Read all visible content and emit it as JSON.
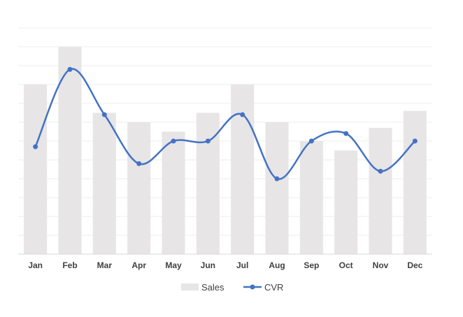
{
  "chart_data": {
    "type": "bar",
    "categories": [
      "Jan",
      "Feb",
      "Mar",
      "Apr",
      "May",
      "Jun",
      "Jul",
      "Aug",
      "Sep",
      "Oct",
      "Nov",
      "Dec"
    ],
    "series": [
      {
        "name": "Sales",
        "type": "bar",
        "values": [
          4.5,
          5.5,
          3.75,
          3.5,
          3.25,
          3.75,
          4.5,
          3.5,
          3.0,
          2.75,
          3.35,
          3.8
        ]
      },
      {
        "name": "CVR",
        "type": "line",
        "smooth": true,
        "values": [
          2.85,
          4.9,
          3.7,
          2.4,
          3.0,
          3.0,
          3.7,
          2.0,
          3.0,
          3.2,
          2.2,
          3.0
        ]
      }
    ],
    "ylim": [
      0,
      6
    ],
    "grid": true,
    "legend": "bottom",
    "colors": {
      "bar": "#e7e5e6",
      "line": "#4472c4",
      "grid": "#eeeeee",
      "axis": "#d9d9d9"
    }
  }
}
